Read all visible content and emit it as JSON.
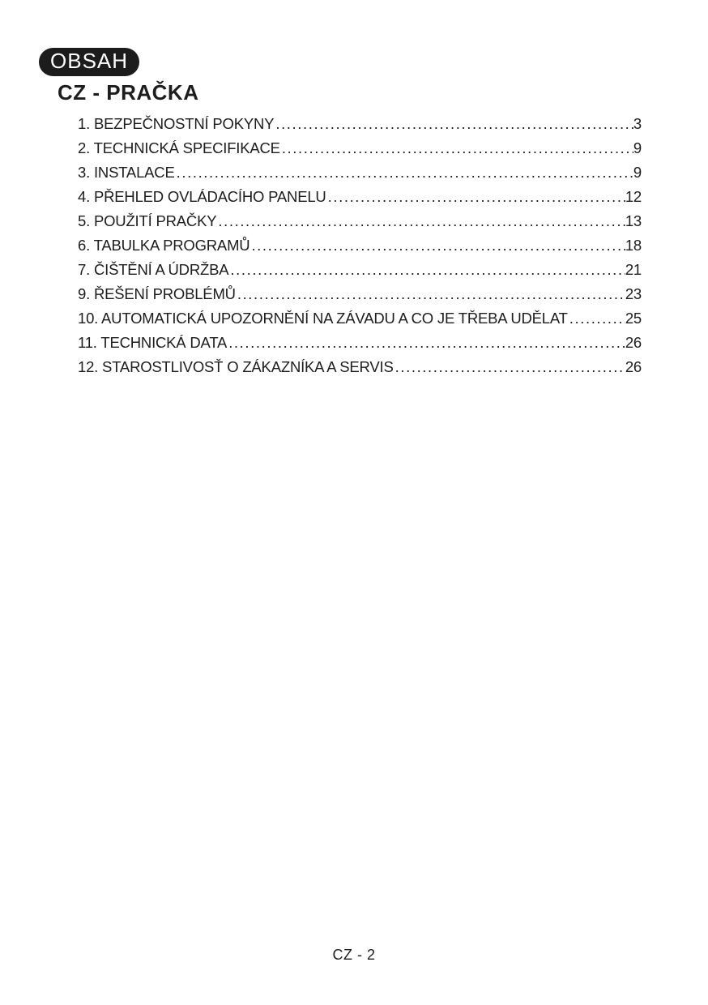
{
  "page": {
    "badge": "OBSAH",
    "title": "CZ - PRAČKA",
    "footer": "CZ - 2"
  },
  "toc": {
    "items": [
      {
        "label": "1. BEZPEČNOSTNÍ POKYNY",
        "page": "3"
      },
      {
        "label": "2. TECHNICKÁ SPECIFIKACE",
        "page": "9"
      },
      {
        "label": "3. INSTALACE",
        "page": "9"
      },
      {
        "label": "4. PŘEHLED OVLÁDACÍHO PANELU",
        "page": "12"
      },
      {
        "label": "5. POUŽITÍ PRAČKY",
        "page": "13"
      },
      {
        "label": "6. TABULKA PROGRAMŮ",
        "page": "18"
      },
      {
        "label": "7. ČIŠTĚNÍ A ÚDRŽBA",
        "page": "21"
      },
      {
        "label": "9. ŘEŠENÍ PROBLÉMŮ",
        "page": "23"
      },
      {
        "label": "10. AUTOMATICKÁ UPOZORNĚNÍ NA ZÁVADU A CO JE TŘEBA UDĚLAT",
        "page": "25"
      },
      {
        "label": "11. TECHNICKÁ DATA",
        "page": "26"
      },
      {
        "label": "12. STAROSTLIVOSŤ O ZÁKAZNÍKA A SERVIS",
        "page": "26"
      }
    ]
  },
  "colors": {
    "badge_bg": "#1c1c1c",
    "badge_text": "#ffffff",
    "text": "#1d1d1d",
    "page_bg": "#ffffff"
  }
}
